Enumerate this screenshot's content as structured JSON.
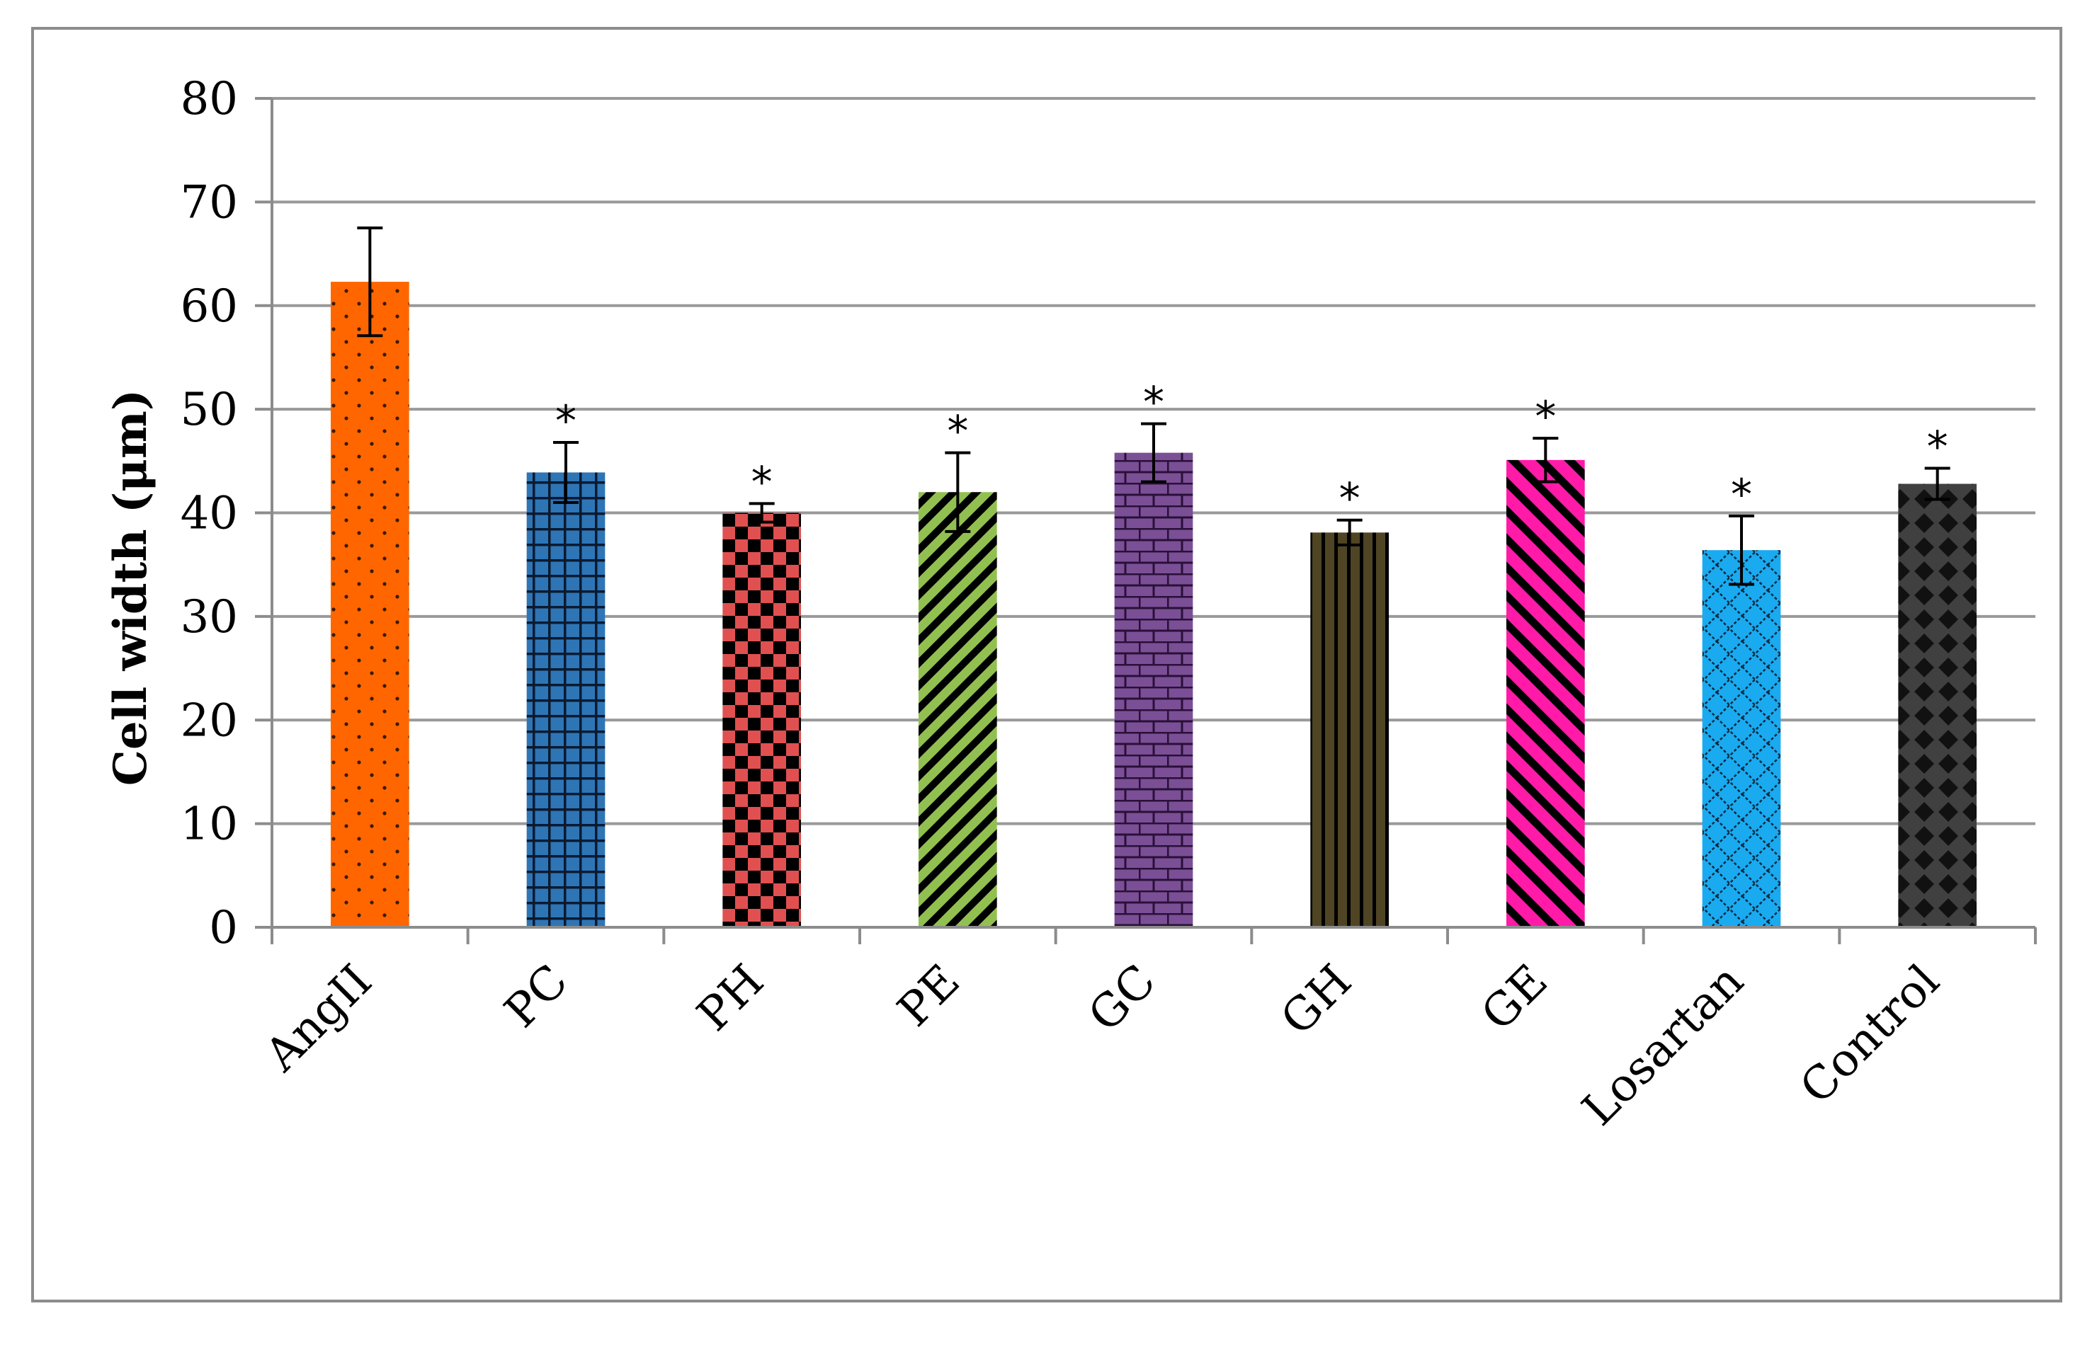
{
  "chart_data": {
    "type": "bar",
    "title": "",
    "xlabel": "",
    "ylabel": "Cell width (μm)",
    "ylim": [
      0,
      80
    ],
    "yticks": [
      0,
      10,
      20,
      30,
      40,
      50,
      60,
      70,
      80
    ],
    "grid": true,
    "legend": "none",
    "categories": [
      "AngII",
      "PC",
      "PH",
      "PE",
      "GC",
      "GH",
      "GE",
      "Losartan",
      "Control"
    ],
    "values": [
      62.3,
      43.9,
      40.0,
      42.0,
      45.8,
      38.1,
      45.1,
      36.4,
      42.8
    ],
    "errors": [
      5.2,
      2.9,
      0.9,
      3.8,
      2.8,
      1.2,
      2.1,
      3.3,
      1.5
    ],
    "annotations": [
      "",
      "*",
      "*",
      "*",
      "*",
      "*",
      "*",
      "*",
      "*"
    ],
    "bar_styles": [
      {
        "pattern": "dots",
        "fill": "#ff6600",
        "ink": "#3a1a00"
      },
      {
        "pattern": "grid",
        "fill": "#2e75b6",
        "ink": "#0a1a30"
      },
      {
        "pattern": "checker",
        "fill": "#e05050",
        "ink": "#000000"
      },
      {
        "pattern": "diag-up",
        "fill": "#92c050",
        "ink": "#000000"
      },
      {
        "pattern": "brick",
        "fill": "#7b4f96",
        "ink": "#2a1038"
      },
      {
        "pattern": "vstripes",
        "fill": "#4f4524",
        "ink": "#000000"
      },
      {
        "pattern": "diag-down",
        "fill": "#ff1aa8",
        "ink": "#000000"
      },
      {
        "pattern": "lattice",
        "fill": "#1aaaf0",
        "ink": "#0a2a40"
      },
      {
        "pattern": "diamonds",
        "fill": "#404040",
        "ink": "#111111"
      }
    ],
    "colors": {
      "grid": "#999999",
      "axis": "#8c8c8c",
      "error_bar": "#000000"
    }
  }
}
